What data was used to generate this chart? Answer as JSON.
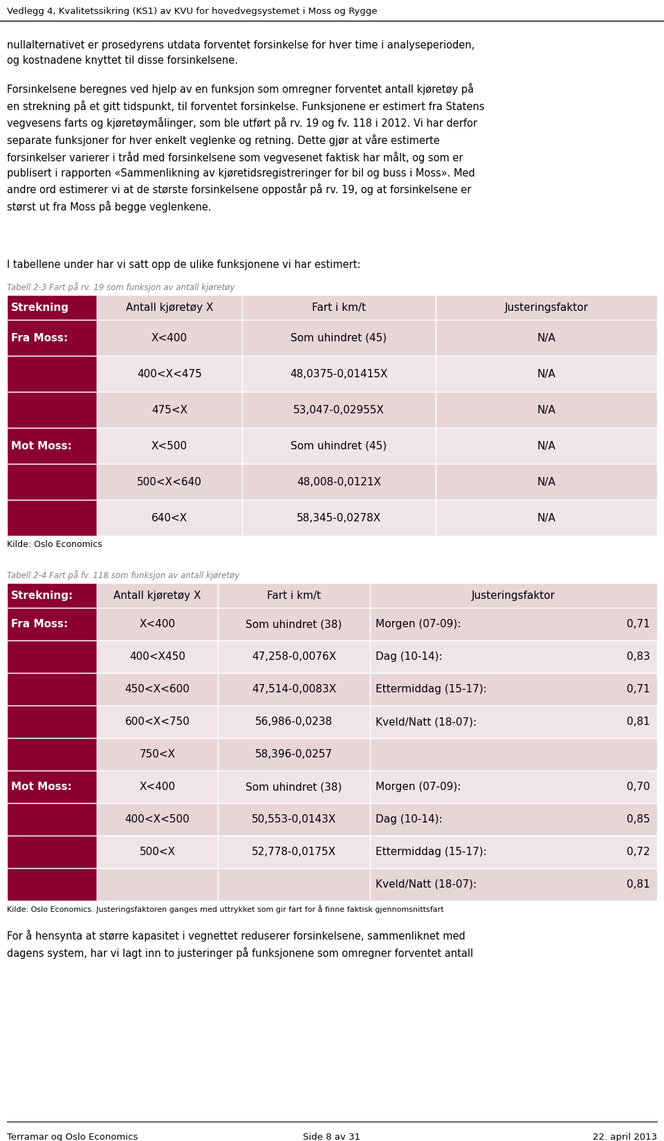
{
  "header_title": "Vedlegg 4, Kvalitetssikring (KS1) av KVU for hovedvegsystemet i Moss og Rygge",
  "body_text_1": "nullalternativet er prosedyrens utdata forventet forsinkelse for hver time i analyseperioden,\nog kostnadene knyttet til disse forsinkelsene.",
  "body_text_2": "Forsinkelsene beregnes ved hjelp av en funksjon som omregner forventet antall kjøretøy på\nen strekning på et gitt tidspunkt, til forventet forsinkelse. Funksjonene er estimert fra Statens\nvegvesens farts og kjøretøymålinger, som ble utført på rv. 19 og fv. 118 i 2012. Vi har derfor\nseparate funksjoner for hver enkelt veglenke og retning. Dette gjør at våre estimerte\nforsinkelser varierer i tråd med forsinkelsene som vegvesenet faktisk har målt, og som er\npublisert i rapporten «Sammenlikning av kjøretidsregistreringer for bil og buss i Moss». Med\nandre ord estimerer vi at de største forsinkelsene oppostår på rv. 19, og at forsinkelsene er\nstørst ut fra Moss på begge veglenkene.",
  "body_text_3": "I tabellene under har vi satt opp de ulike funksjonene vi har estimert:",
  "table1_caption": "Tabell 2-3 Fart på rv. 19 som funksjon av antall kjøretøy",
  "table1_headers": [
    "Strekning",
    "Antall kjøretøy X",
    "Fart i km/t",
    "Justeringsfaktor"
  ],
  "table1_rows": [
    [
      "Fra Moss:",
      "X<400",
      "Som uhindret (45)",
      "N/A"
    ],
    [
      "",
      "400<X<475",
      "48,0375-0,01415X",
      "N/A"
    ],
    [
      "",
      "475<X",
      "53,047-0,02955X",
      "N/A"
    ],
    [
      "Mot Moss:",
      "X<500",
      "Som uhindret (45)",
      "N/A"
    ],
    [
      "",
      "500<X<640",
      "48,008-0,0121X",
      "N/A"
    ],
    [
      "",
      "640<X",
      "58,345-0,0278X",
      "N/A"
    ]
  ],
  "table1_source": "Kilde: Oslo Economics",
  "table2_caption": "Tabell 2-4 Fart på fv. 118 som funksjon av antall kjøretøy",
  "table2_headers": [
    "Strekning:",
    "Antall kjøretøy X",
    "Fart i km/t",
    "Justeringsfaktor"
  ],
  "table2_rows": [
    [
      "Fra Moss:",
      "X<400",
      "Som uhindret (38)",
      "Morgen (07-09):",
      "0,71"
    ],
    [
      "",
      "400<X450",
      "47,258-0,0076X",
      "Dag (10-14):",
      "0,83"
    ],
    [
      "",
      "450<X<600",
      "47,514-0,0083X",
      "Ettermiddag (15-17):",
      "0,71"
    ],
    [
      "",
      "600<X<750",
      "56,986-0,0238",
      "Kveld/Natt (18-07):",
      "0,81"
    ],
    [
      "",
      "750<X",
      "58,396-0,0257",
      "",
      ""
    ],
    [
      "Mot Moss:",
      "X<400",
      "Som uhindret (38)",
      "Morgen (07-09):",
      "0,70"
    ],
    [
      "",
      "400<X<500",
      "50,553-0,0143X",
      "Dag (10-14):",
      "0,85"
    ],
    [
      "",
      "500<X",
      "52,778-0,0175X",
      "Ettermiddag (15-17):",
      "0,72"
    ],
    [
      "",
      "",
      "",
      "Kveld/Natt (18-07):",
      "0,81"
    ]
  ],
  "table2_source": "Kilde: Oslo Economics. Justeringsfaktoren ganges med uttrykket som gir fart for å finne faktisk gjennomsnittsfart",
  "body_text_4": "For å hensynta at større kapasitet i vegnettet reduserer forsinkelsene, sammenliknet med\ndagens system, har vi lagt inn to justeringer på funksjonene som omregner forventet antall",
  "footer_left": "Terramar og Oslo Economics",
  "footer_center": "Side 8 av 31",
  "footer_right": "22. april 2013",
  "dark_red": "#8B0030",
  "light_pink": "#E8D5D8",
  "lighter_pink": "#F0E4E6"
}
